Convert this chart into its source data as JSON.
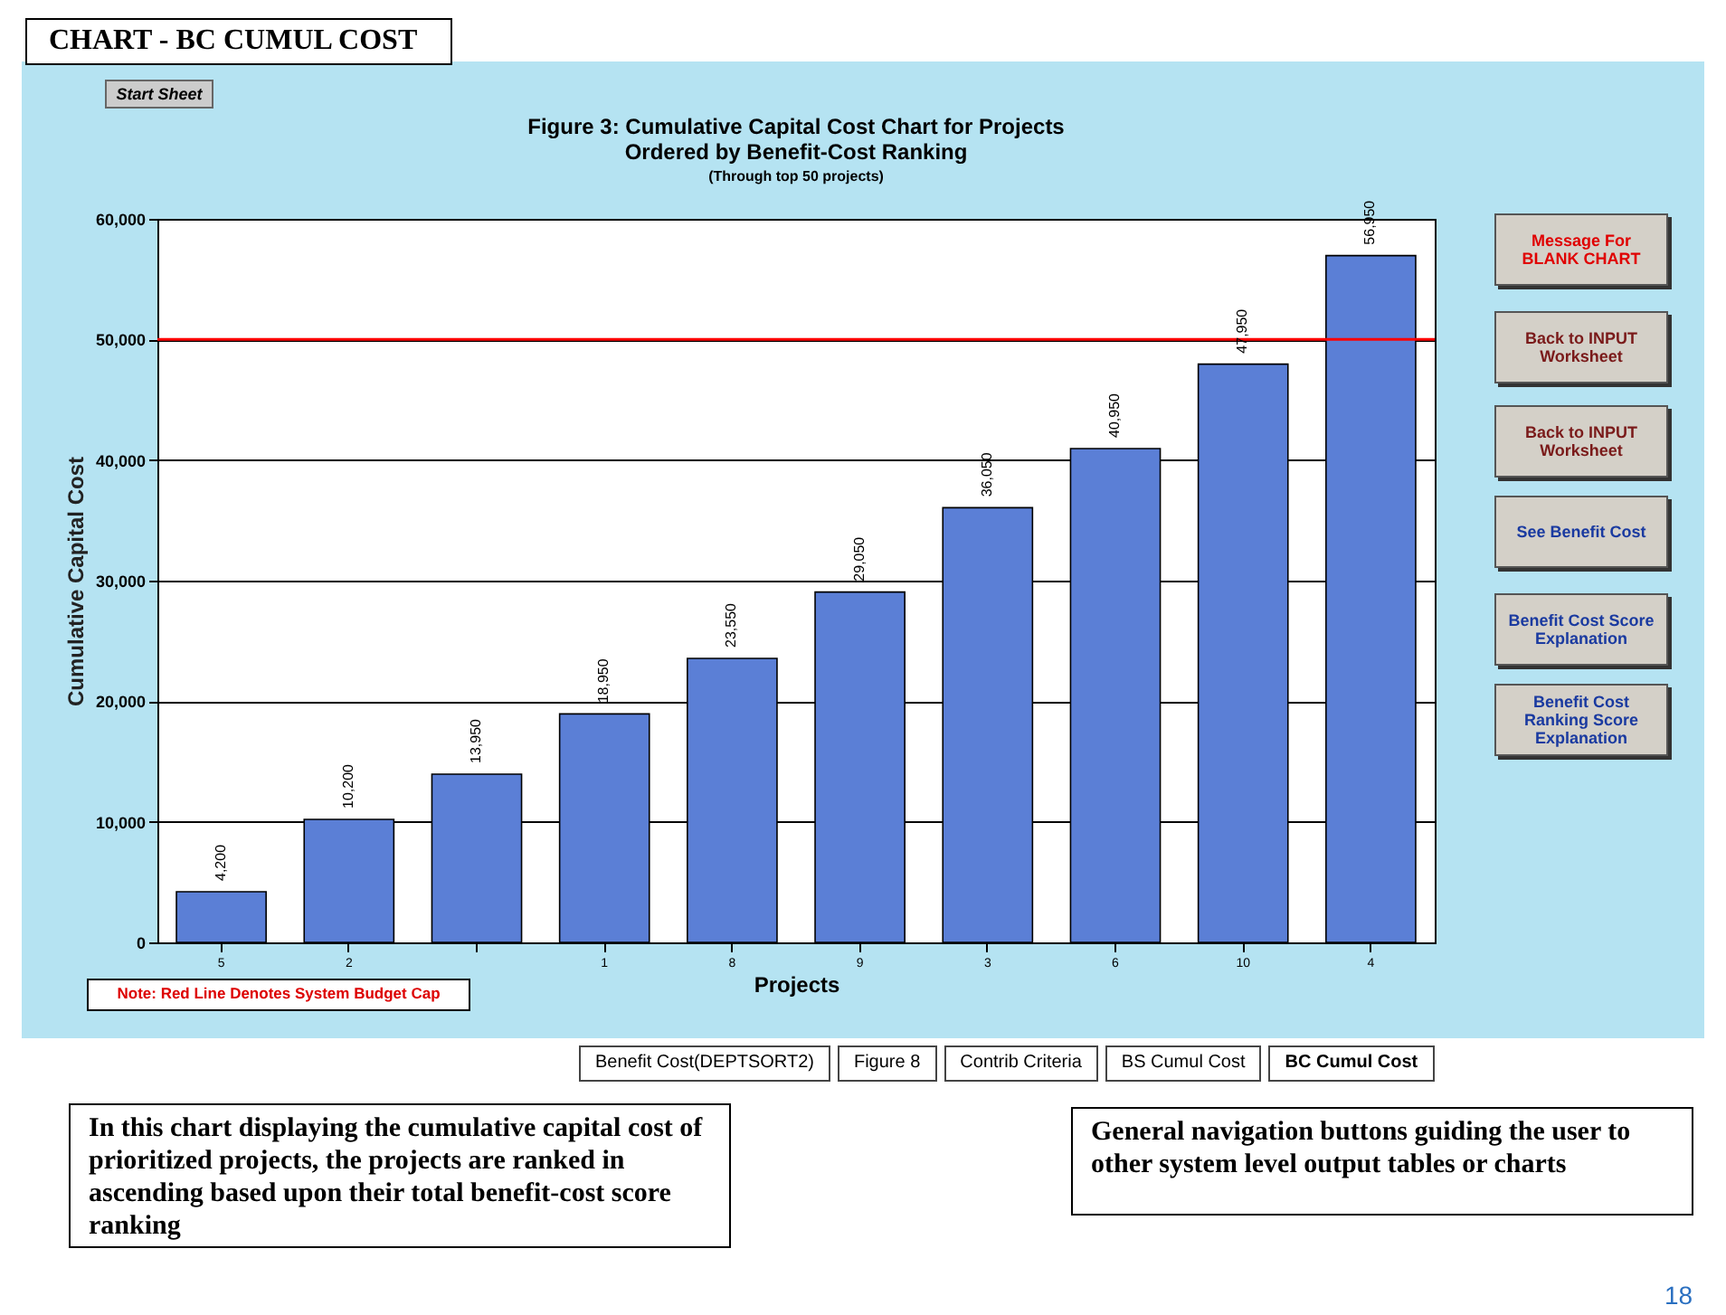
{
  "chart_data": {
    "type": "bar",
    "title": [
      "Figure 3:  Cumulative Capital Cost Chart for Projects",
      "Ordered by Benefit-Cost Ranking"
    ],
    "subtitle": "(Through top 50 projects)",
    "xlabel": "Projects",
    "ylabel": "Cumulative Capital Cost",
    "categories": [
      "5",
      "2",
      null,
      "1",
      "8",
      "9",
      "3",
      "6",
      "10",
      "4"
    ],
    "values": [
      4200,
      10200,
      13950,
      18950,
      23550,
      29050,
      36050,
      40950,
      47950,
      56950
    ],
    "color": "#5b7fd6",
    "ylim": [
      0,
      60000
    ],
    "yticks": [
      0,
      {
        "value": 10000,
        "label": "10,000"
      },
      {
        "value": 20000,
        "label": "20,000"
      },
      {
        "value": 30000,
        "label": "30,000"
      },
      {
        "value": 40000,
        "label": "40,000"
      },
      {
        "value": 50000,
        "label": "50,000"
      },
      {
        "value": 60000,
        "label": "60,000"
      }
    ],
    "grid": "y",
    "value_labels": [
      "4,200",
      "10,200",
      "13,950",
      "18,950",
      "23,550",
      "29,050",
      "36,050",
      "40,950",
      "47,950",
      "56,950"
    ],
    "ref_lines": [
      {
        "axis": "y",
        "value": 50000,
        "color": "#ff0000"
      }
    ],
    "annotations": [
      "CHART - BC CUMUL COST",
      "Start Sheet",
      "Note: Red Line Denotes System Budget Cap",
      "Message For BLANK CHART",
      "Back to INPUT Worksheet",
      "Back to INPUT Worksheet",
      "See Benefit Cost",
      "Benefit Cost Score Explanation",
      "Benefit Cost Ranking Score Explanation",
      "Benefit Cost(DEPTSORT2)",
      "Figure 8",
      "Contrib Criteria",
      "BS Cumul Cost",
      "BC Cumul Cost",
      "In this chart displaying the cumulative capital cost of prioritized projects,  the projects are ranked in ascending based upon their total benefit-cost score ranking",
      "General navigation buttons guiding the user to other system level output tables or charts",
      "18"
    ]
  }
}
